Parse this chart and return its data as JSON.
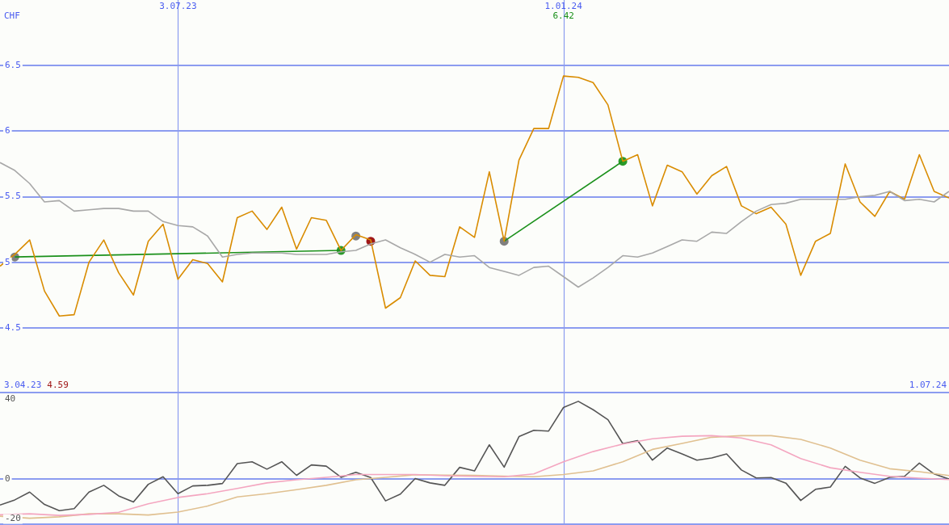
{
  "chart_data": [
    {
      "type": "line",
      "ylabel": "CHF",
      "grid": true,
      "legend": false,
      "x": [
        "2023-04-10",
        "2023-04-17",
        "2023-04-24",
        "2023-05-01",
        "2023-05-08",
        "2023-05-15",
        "2023-05-22",
        "2023-05-29",
        "2023-06-05",
        "2023-06-12",
        "2023-06-19",
        "2023-06-26",
        "2023-07-03",
        "2023-07-10",
        "2023-07-17",
        "2023-07-24",
        "2023-07-31",
        "2023-08-07",
        "2023-08-14",
        "2023-08-21",
        "2023-08-28",
        "2023-09-04",
        "2023-09-11",
        "2023-09-18",
        "2023-09-25",
        "2023-10-02",
        "2023-10-09",
        "2023-10-16",
        "2023-10-23",
        "2023-10-30",
        "2023-11-06",
        "2023-11-13",
        "2023-11-20",
        "2023-11-27",
        "2023-12-04",
        "2023-12-11",
        "2023-12-18",
        "2023-12-25",
        "2024-01-01",
        "2024-01-08",
        "2024-01-15",
        "2024-01-22",
        "2024-01-29",
        "2024-02-05",
        "2024-02-12",
        "2024-02-19",
        "2024-02-26",
        "2024-03-04",
        "2024-03-11",
        "2024-03-18",
        "2024-03-25",
        "2024-04-01",
        "2024-04-08",
        "2024-04-15",
        "2024-04-22",
        "2024-04-29",
        "2024-05-06",
        "2024-05-13",
        "2024-05-20",
        "2024-05-27",
        "2024-06-03",
        "2024-06-10",
        "2024-06-17",
        "2024-06-24",
        "2024-07-01"
      ],
      "xlim": [
        "2023-04-10",
        "2024-07-01"
      ],
      "xticks": [
        {
          "value": "2023-07-03",
          "label": "3.07.23"
        },
        {
          "value": "2024-01-01",
          "label": "1.01.24"
        }
      ],
      "ylim": [
        4,
        7
      ],
      "yticks": [
        4.5,
        5,
        5.5,
        6,
        6.5
      ],
      "series": [
        {
          "color": "#a8a8a8",
          "values": [
            5.76,
            5.7,
            5.6,
            5.46,
            5.47,
            5.39,
            5.4,
            5.41,
            5.41,
            5.39,
            5.39,
            5.31,
            5.28,
            5.27,
            5.2,
            5.04,
            5.06,
            5.07,
            5.07,
            5.07,
            5.06,
            5.06,
            5.06,
            5.08,
            5.09,
            5.14,
            5.17,
            5.11,
            5.06,
            5.0,
            5.06,
            5.04,
            5.05,
            4.96,
            4.93,
            4.9,
            4.96,
            4.97,
            4.89,
            4.81,
            4.88,
            4.96,
            5.05,
            5.04,
            5.07,
            5.12,
            5.17,
            5.16,
            5.23,
            5.22,
            5.31,
            5.39,
            5.44,
            5.45,
            5.48,
            5.48,
            5.48,
            5.48,
            5.5,
            5.51,
            5.54,
            5.47,
            5.48,
            5.46,
            5.54
          ]
        },
        {
          "color": "#d98c00",
          "values": [
            4.97,
            5.06,
            5.17,
            4.78,
            4.59,
            4.6,
            5.0,
            5.17,
            4.92,
            4.75,
            5.16,
            5.29,
            4.87,
            5.02,
            4.99,
            4.85,
            5.34,
            5.39,
            5.25,
            5.42,
            5.1,
            5.34,
            5.32,
            5.09,
            5.21,
            5.17,
            4.65,
            4.73,
            5.01,
            4.9,
            4.89,
            5.27,
            5.19,
            5.69,
            5.16,
            5.78,
            6.02,
            6.02,
            6.42,
            6.41,
            6.37,
            6.2,
            5.77,
            5.82,
            5.43,
            5.74,
            5.69,
            5.52,
            5.66,
            5.73,
            5.43,
            5.37,
            5.42,
            5.29,
            4.9,
            5.16,
            5.22,
            5.75,
            5.46,
            5.35,
            5.54,
            5.48,
            5.82,
            5.54,
            5.49
          ]
        },
        {
          "color": "#1a901a",
          "x": [
            "2023-04-17",
            "2023-09-18"
          ],
          "values": [
            5.04,
            5.09
          ]
        },
        {
          "color": "#1a901a",
          "x": [
            "2023-12-04",
            "2024-01-29"
          ],
          "values": [
            5.16,
            5.77
          ]
        },
        {
          "type": "scatter",
          "marker": "circle",
          "color": "#808080",
          "x": [
            "2023-04-17",
            "2023-09-25",
            "2023-12-04"
          ],
          "values": [
            5.04,
            5.2,
            5.16
          ]
        },
        {
          "type": "scatter",
          "marker": "circle",
          "color": "#2a9a2a",
          "x": [
            "2023-09-18",
            "2024-01-29"
          ],
          "values": [
            5.09,
            5.77
          ]
        },
        {
          "type": "scatter",
          "marker": "circle",
          "color": "#a01818",
          "x": [
            "2023-10-02"
          ],
          "values": [
            5.16
          ]
        }
      ],
      "annotations": [
        "3.04.23",
        "4.59",
        "6.42",
        "1.07.24"
      ]
    },
    {
      "type": "line",
      "grid": "x",
      "legend": false,
      "tick_labels": "y",
      "x": [
        "2023-04-10",
        "2023-04-17",
        "2023-04-24",
        "2023-05-01",
        "2023-05-08",
        "2023-05-15",
        "2023-05-22",
        "2023-05-29",
        "2023-06-05",
        "2023-06-12",
        "2023-06-19",
        "2023-06-26",
        "2023-07-03",
        "2023-07-10",
        "2023-07-17",
        "2023-07-24",
        "2023-07-31",
        "2023-08-07",
        "2023-08-14",
        "2023-08-21",
        "2023-08-28",
        "2023-09-04",
        "2023-09-11",
        "2023-09-18",
        "2023-09-25",
        "2023-10-02",
        "2023-10-09",
        "2023-10-16",
        "2023-10-23",
        "2023-10-30",
        "2023-11-06",
        "2023-11-13",
        "2023-11-20",
        "2023-11-27",
        "2023-12-04",
        "2023-12-11",
        "2023-12-18",
        "2023-12-25",
        "2024-01-01",
        "2024-01-08",
        "2024-01-15",
        "2024-01-22",
        "2024-01-29",
        "2024-02-05",
        "2024-02-12",
        "2024-02-19",
        "2024-02-26",
        "2024-03-04",
        "2024-03-11",
        "2024-03-18",
        "2024-03-25",
        "2024-04-01",
        "2024-04-08",
        "2024-04-15",
        "2024-04-22",
        "2024-04-29",
        "2024-05-06",
        "2024-05-13",
        "2024-05-20",
        "2024-05-27",
        "2024-06-03",
        "2024-06-10",
        "2024-06-17",
        "2024-06-24",
        "2024-07-01"
      ],
      "xlim": [
        "2023-04-10",
        "2024-07-01"
      ],
      "xticks": [
        {
          "value": "2023-07-03",
          "label": null
        },
        {
          "value": "2024-01-01",
          "label": null
        }
      ],
      "ylim": [
        -23,
        43
      ],
      "yticks": [
        -20,
        0,
        40
      ],
      "ref_lines": [
        {
          "axis": "y",
          "value": 0,
          "color": "#8c9cf0"
        }
      ],
      "series": [
        {
          "color": "#f4a6c0",
          "x": [
            "2023-04-10",
            "2023-04-24",
            "2023-05-08",
            "2023-05-22",
            "2023-06-05",
            "2023-06-19",
            "2023-07-03",
            "2023-07-17",
            "2023-07-31",
            "2023-08-14",
            "2023-08-28",
            "2023-09-11",
            "2023-09-25",
            "2023-10-09",
            "2023-10-23",
            "2023-11-06",
            "2023-11-20",
            "2023-12-04",
            "2023-12-18",
            "2024-01-01",
            "2024-01-15",
            "2024-01-29",
            "2024-02-12",
            "2024-02-26",
            "2024-03-11",
            "2024-03-25",
            "2024-04-08",
            "2024-04-22",
            "2024-05-06",
            "2024-05-20",
            "2024-06-03",
            "2024-06-17",
            "2024-07-01"
          ],
          "values": [
            -17.9,
            -17.4,
            -18.2,
            -17.7,
            -16.6,
            -12.4,
            -9.2,
            -7.3,
            -4.7,
            -1.9,
            -0.3,
            0.9,
            2.3,
            2.3,
            2.3,
            1.7,
            1.4,
            1.2,
            2.6,
            8.7,
            13.8,
            17.6,
            20.2,
            21.5,
            21.8,
            20.6,
            17.2,
            10.3,
            5.7,
            3.4,
            1.4,
            0.5,
            -0.2
          ]
        },
        {
          "color": "#e0c090",
          "x": [
            "2023-04-10",
            "2023-04-24",
            "2023-05-08",
            "2023-05-22",
            "2023-06-05",
            "2023-06-19",
            "2023-07-03",
            "2023-07-17",
            "2023-07-31",
            "2023-08-14",
            "2023-08-28",
            "2023-09-11",
            "2023-09-25",
            "2023-10-09",
            "2023-10-23",
            "2023-11-06",
            "2023-11-20",
            "2023-12-04",
            "2023-12-18",
            "2024-01-01",
            "2024-01-15",
            "2024-01-29",
            "2024-02-12",
            "2024-02-26",
            "2024-03-11",
            "2024-03-25",
            "2024-04-08",
            "2024-04-22",
            "2024-05-06",
            "2024-05-20",
            "2024-06-03",
            "2024-06-17",
            "2024-07-01"
          ],
          "values": [
            -18.6,
            -19.6,
            -18.9,
            -17.4,
            -17.4,
            -18.0,
            -16.5,
            -13.5,
            -8.9,
            -7.3,
            -5.3,
            -3.1,
            -0.3,
            0.9,
            2.2,
            2.0,
            1.9,
            1.5,
            1.2,
            2.3,
            4.1,
            8.7,
            14.9,
            17.9,
            21.0,
            21.8,
            21.8,
            19.9,
            15.6,
            9.5,
            5.2,
            3.7,
            1.8
          ]
        },
        {
          "color": "#555555",
          "values": [
            -13,
            -10.4,
            -6.5,
            -12.7,
            -15.8,
            -14.8,
            -6.5,
            -3.1,
            -8.4,
            -11.5,
            -2.6,
            1.2,
            -7.3,
            -3.4,
            -3.1,
            -2.2,
            7.8,
            8.7,
            5.0,
            8.7,
            1.9,
            7.1,
            6.5,
            0.9,
            3.4,
            0.8,
            -10.9,
            -7.5,
            0.3,
            -1.9,
            -3.1,
            5.9,
            4.1,
            17.2,
            6.0,
            21.3,
            24.5,
            24.1,
            35.9,
            39.0,
            34.8,
            29.8,
            17.8,
            19.3,
            9.5,
            15.6,
            12.6,
            9.5,
            10.6,
            12.6,
            4.6,
            0.6,
            0.8,
            -2.0,
            -10.7,
            -5.1,
            -4.0,
            6.4,
            0.6,
            -2.1,
            0.9,
            1.4,
            8.0,
            2.6,
            0
          ]
        }
      ]
    }
  ]
}
